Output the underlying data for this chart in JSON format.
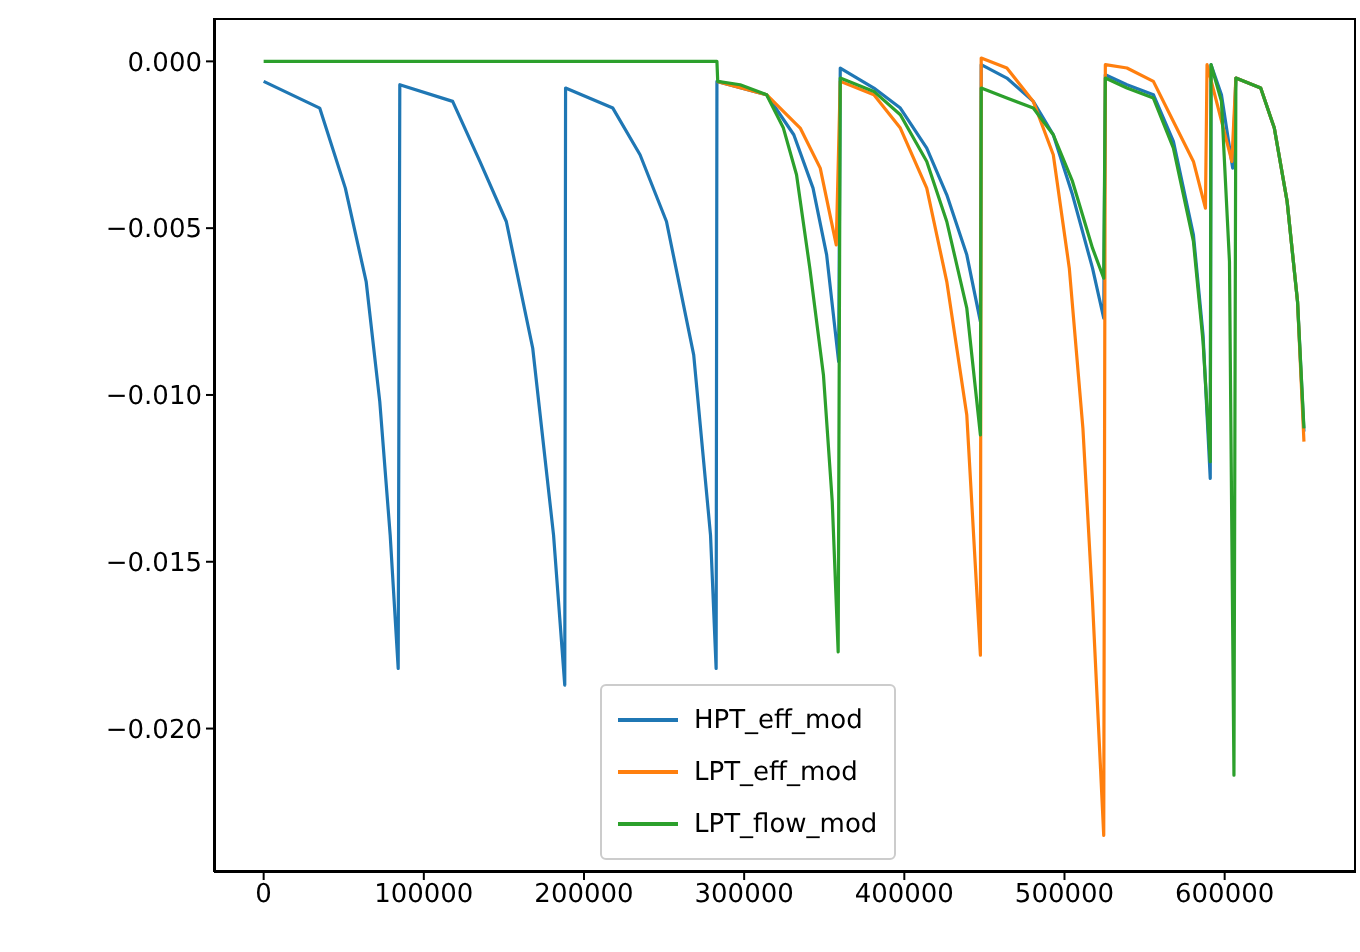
{
  "chart_data": {
    "type": "line",
    "xlim": [
      -31000,
      682000
    ],
    "ylim": [
      -0.0243,
      0.0013
    ],
    "xticks": [
      0,
      100000,
      200000,
      300000,
      400000,
      500000,
      600000
    ],
    "yticks": [
      {
        "value": 0,
        "label": "0.000"
      },
      {
        "value": -0.005,
        "label": "−0.005"
      },
      {
        "value": -0.01,
        "label": "−0.010"
      },
      {
        "value": -0.015,
        "label": "−0.015"
      },
      {
        "value": -0.02,
        "label": "−0.020"
      }
    ],
    "legend": "bottom",
    "grid": false,
    "marker": "none",
    "line_style": "solid",
    "series": [
      {
        "name": "HPT_eff_mod",
        "color": "#1f77b4",
        "x": [
          0,
          35000,
          51000,
          64000,
          72500,
          79000,
          84000,
          85000,
          118000,
          135000,
          151500,
          168000,
          181000,
          188000,
          188500,
          218000,
          235000,
          251500,
          268500,
          279000,
          282500,
          283000,
          314000,
          331000,
          343000,
          351500,
          359000,
          360000,
          381000,
          397500,
          414000,
          426500,
          439000,
          447500,
          448000,
          464000,
          480500,
          493000,
          505000,
          517500,
          524500,
          525500,
          539000,
          555500,
          568000,
          580500,
          586500,
          591000,
          591500,
          598000,
          605000,
          607000,
          622500,
          631000,
          639000,
          645500,
          649500
        ],
        "values": [
          -0.0006,
          -0.0014,
          -0.0038,
          -0.0066,
          -0.0102,
          -0.0142,
          -0.0182,
          -0.0007,
          -0.0012,
          -0.003,
          -0.0048,
          -0.0086,
          -0.0142,
          -0.0187,
          -0.0008,
          -0.0014,
          -0.0028,
          -0.0048,
          -0.0088,
          -0.0142,
          -0.0182,
          -0.0006,
          -0.001,
          -0.0022,
          -0.0038,
          -0.0058,
          -0.009,
          -0.0002,
          -0.0008,
          -0.0014,
          -0.0026,
          -0.004,
          -0.0058,
          -0.0078,
          -0.0001,
          -0.0005,
          -0.0012,
          -0.0022,
          -0.004,
          -0.0062,
          -0.0077,
          -0.0004,
          -0.0007,
          -0.001,
          -0.0024,
          -0.0052,
          -0.0082,
          -0.0125,
          -0.0001,
          -0.001,
          -0.0032,
          -0.0005,
          -0.0008,
          -0.002,
          -0.0042,
          -0.0072,
          -0.0111
        ]
      },
      {
        "name": "LPT_eff_mod",
        "color": "#ff7f0e",
        "x": [
          283000,
          314000,
          335000,
          347500,
          357500,
          360000,
          381000,
          397500,
          414000,
          426500,
          439000,
          447500,
          448000,
          464000,
          480500,
          493000,
          503000,
          511500,
          517500,
          524500,
          525500,
          539000,
          555500,
          568000,
          580500,
          588000,
          589000,
          604500,
          607000,
          622500,
          631000,
          639000,
          645500,
          649500
        ],
        "values": [
          -0.0006,
          -0.001,
          -0.002,
          -0.0032,
          -0.0055,
          -0.0006,
          -0.001,
          -0.002,
          -0.0038,
          -0.0066,
          -0.0106,
          -0.0178,
          0.0001,
          -0.0002,
          -0.0012,
          -0.0028,
          -0.0062,
          -0.011,
          -0.0162,
          -0.0232,
          -0.0001,
          -0.0002,
          -0.0006,
          -0.0018,
          -0.003,
          -0.0044,
          -0.0001,
          -0.003,
          -0.0005,
          -0.0008,
          -0.002,
          -0.0042,
          -0.0072,
          -0.0114
        ]
      },
      {
        "name": "LPT_flow_mod",
        "color": "#2ca02c",
        "x": [
          0,
          283000,
          283500,
          297500,
          314000,
          324500,
          332700,
          341000,
          349500,
          355000,
          358700,
          360000,
          381000,
          397500,
          414000,
          426500,
          439000,
          447500,
          448000,
          464000,
          480500,
          493000,
          505000,
          517500,
          524500,
          525500,
          539000,
          555500,
          568000,
          580500,
          586500,
          591000,
          591500,
          598000,
          603000,
          605800,
          607000,
          622500,
          631000,
          639000,
          645500,
          649500
        ],
        "values": [
          0,
          0,
          -0.0006,
          -0.0007,
          -0.001,
          -0.002,
          -0.0034,
          -0.0062,
          -0.0094,
          -0.0132,
          -0.0177,
          -0.0005,
          -0.0009,
          -0.0016,
          -0.003,
          -0.0048,
          -0.0074,
          -0.0112,
          -0.0008,
          -0.0011,
          -0.0014,
          -0.0022,
          -0.0036,
          -0.0056,
          -0.0065,
          -0.0005,
          -0.0008,
          -0.0011,
          -0.0026,
          -0.0054,
          -0.0084,
          -0.012,
          -0.0001,
          -0.0012,
          -0.006,
          -0.0214,
          -0.0005,
          -0.0008,
          -0.002,
          -0.0042,
          -0.0072,
          -0.011
        ]
      }
    ]
  }
}
